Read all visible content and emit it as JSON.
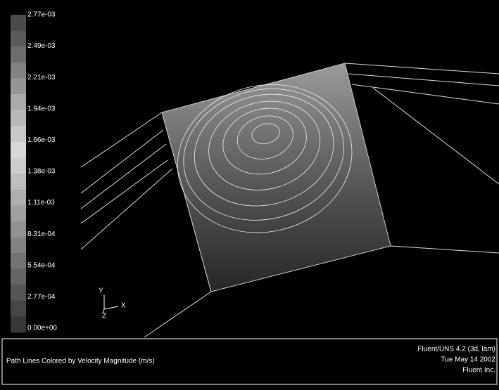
{
  "colorbar": {
    "labels": [
      "2.77e-03",
      "2.49e-03",
      "2.21e-03",
      "1.94e-03",
      "1.66e-03",
      "1.38e-03",
      "1.11e-03",
      "8.31e-04",
      "5.54e-04",
      "2.77e-04",
      "0.00e+00"
    ]
  },
  "axes": {
    "y": "Y",
    "x": "X",
    "z": "Z"
  },
  "footer": {
    "title": "Path Lines Colored by Velocity Magnitude (m/s)",
    "info": [
      "Fluent/UNS 4.2 (3d, lam)",
      "Tue May 14 2002",
      "Fluent Inc."
    ]
  }
}
